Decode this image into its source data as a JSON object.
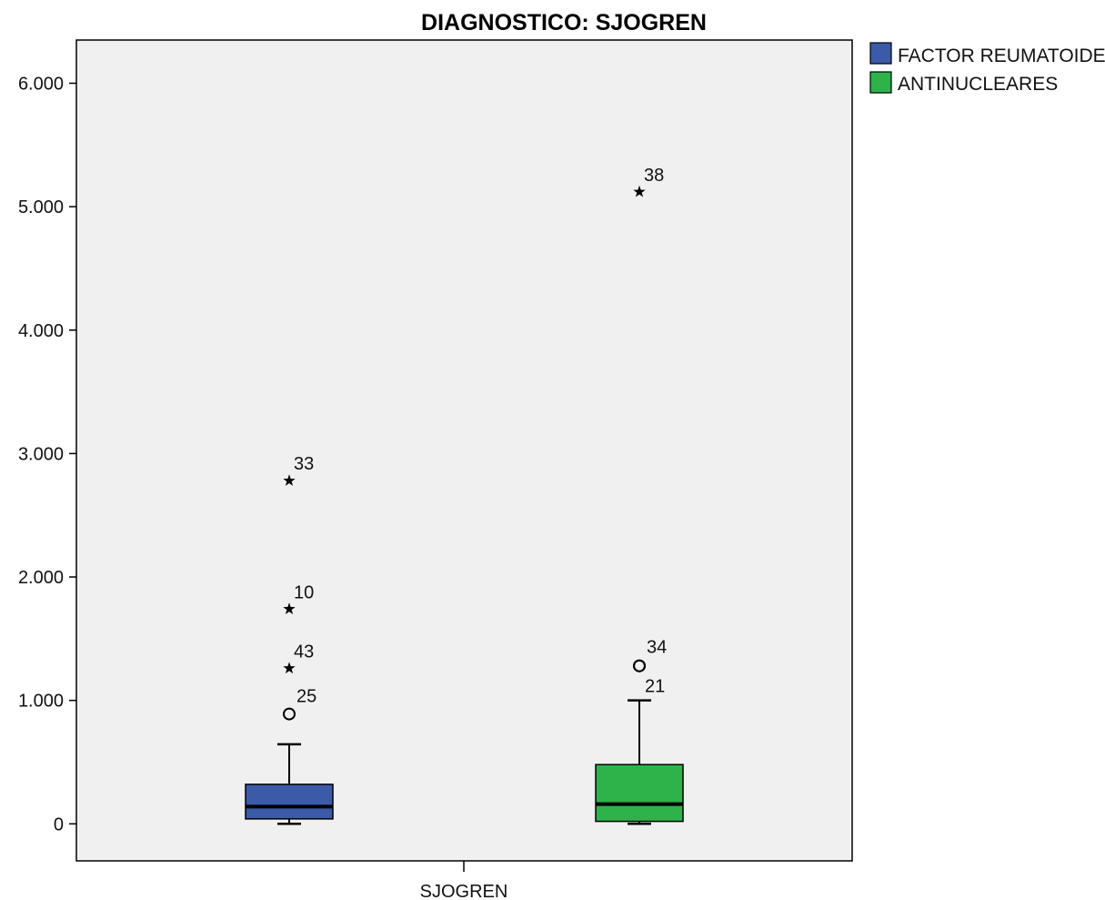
{
  "chart_data": {
    "type": "boxplot",
    "title": "DIAGNOSTICO: SJOGREN",
    "categories": [
      "SJOGREN"
    ],
    "ylim": [
      -300,
      6350
    ],
    "yticks": [
      0,
      1000,
      2000,
      3000,
      4000,
      5000,
      6000
    ],
    "ytick_labels": [
      "0",
      "1.000",
      "2.000",
      "3.000",
      "4.000",
      "5.000",
      "6.000"
    ],
    "legend_position": "top-right, outside plot",
    "series": [
      {
        "name": "FACTOR REUMATOIDE",
        "color": "#3b5ba8",
        "min": 0,
        "q1": 40,
        "median": 140,
        "q3": 320,
        "max": 645,
        "outliers": [
          {
            "label": "25",
            "value": 890,
            "marker": "circle"
          },
          {
            "label": "43",
            "value": 1260,
            "marker": "star"
          },
          {
            "label": "10",
            "value": 1740,
            "marker": "star"
          },
          {
            "label": "33",
            "value": 2780,
            "marker": "star"
          }
        ]
      },
      {
        "name": "ANTINUCLEARES",
        "color": "#2db34a",
        "min": 0,
        "q1": 20,
        "median": 160,
        "q3": 480,
        "max": 1000,
        "outliers": [
          {
            "label": "21",
            "value": 1280,
            "marker": "circle"
          },
          {
            "label": "34",
            "value": 1280,
            "marker": "circle"
          },
          {
            "label": "38",
            "value": 5120,
            "marker": "star"
          }
        ]
      }
    ]
  }
}
